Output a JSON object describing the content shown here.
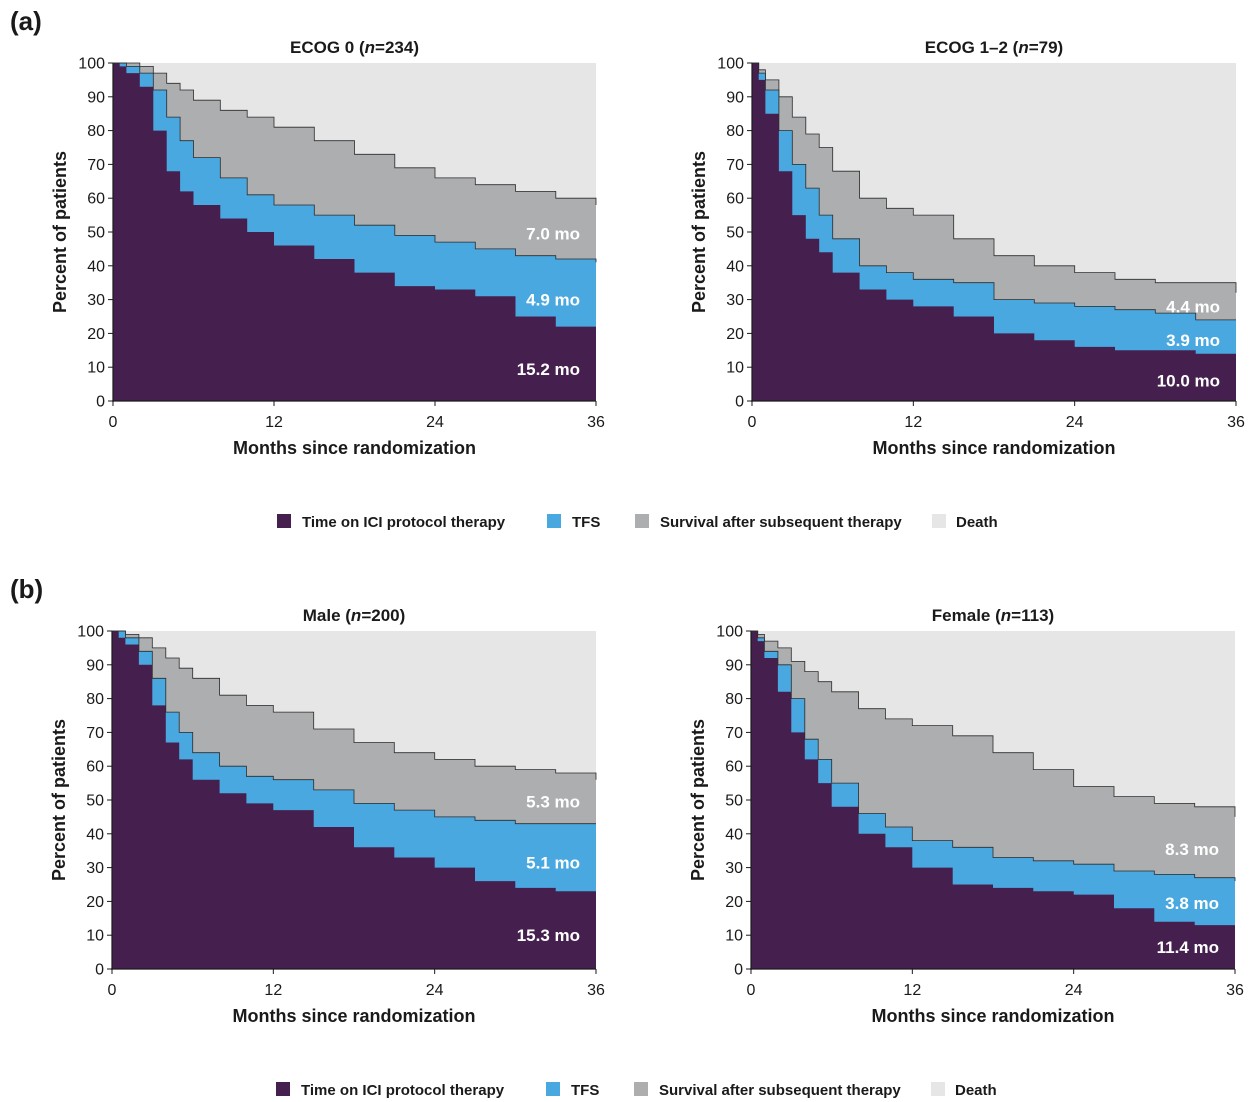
{
  "panels": [
    {
      "letter": "(a)"
    },
    {
      "letter": "(b)"
    }
  ],
  "legend": [
    {
      "label": "Time on ICI protocol therapy",
      "color": "#45204f"
    },
    {
      "label": "TFS",
      "color": "#4aa8e0"
    },
    {
      "label": "Survival after subsequent therapy",
      "color": "#adaeb0"
    },
    {
      "label": "Death",
      "color": "#e6e6e6"
    }
  ],
  "chart_data": [
    {
      "type": "area",
      "panel": "(a)",
      "title": "ECOG 0 (n=234)",
      "title_prefix": "ECOG 0 (",
      "title_n": "n",
      "title_suffix": "=234)",
      "xlabel": "Months since randomization",
      "ylabel": "Percent of patients",
      "xticks": [
        0,
        12,
        24,
        36
      ],
      "yticks": [
        0,
        10,
        20,
        30,
        40,
        50,
        60,
        70,
        80,
        90,
        100
      ],
      "xlim": [
        0,
        36
      ],
      "ylim": [
        0,
        100
      ],
      "x": [
        0,
        0.5,
        1,
        2,
        3,
        4,
        5,
        6,
        8,
        10,
        12,
        15,
        18,
        21,
        24,
        27,
        30,
        33,
        36
      ],
      "series": [
        {
          "key": "ici",
          "values": [
            100,
            99,
            97,
            93,
            80,
            68,
            62,
            58,
            54,
            50,
            46,
            42,
            38,
            34,
            33,
            31,
            25,
            22,
            19
          ]
        },
        {
          "key": "tfs",
          "values": [
            100,
            100,
            99,
            97,
            92,
            84,
            77,
            72,
            66,
            61,
            58,
            55,
            52,
            49,
            47,
            45,
            43,
            42,
            41
          ]
        },
        {
          "key": "os",
          "values": [
            100,
            100,
            100,
            99,
            97,
            94,
            92,
            89,
            86,
            84,
            81,
            77,
            73,
            69,
            66,
            64,
            62,
            60,
            58
          ]
        }
      ],
      "annotations": [
        {
          "text": "7.0 mo",
          "region": "survival-after-subsequent-therapy"
        },
        {
          "text": "4.9 mo",
          "region": "TFS"
        },
        {
          "text": "15.2 mo",
          "region": "time-on-ICI-protocol-therapy"
        }
      ]
    },
    {
      "type": "area",
      "panel": "(a)",
      "title": "ECOG 1–2 (n=79)",
      "title_prefix": "ECOG 1–2 (",
      "title_n": "n",
      "title_suffix": "=79)",
      "xlabel": "Months since randomization",
      "ylabel": "Percent of patients",
      "xticks": [
        0,
        12,
        24,
        36
      ],
      "yticks": [
        0,
        10,
        20,
        30,
        40,
        50,
        60,
        70,
        80,
        90,
        100
      ],
      "xlim": [
        0,
        36
      ],
      "ylim": [
        0,
        100
      ],
      "x": [
        0,
        0.5,
        1,
        2,
        3,
        4,
        5,
        6,
        8,
        10,
        12,
        15,
        18,
        21,
        24,
        27,
        30,
        33,
        36
      ],
      "series": [
        {
          "key": "ici",
          "values": [
            100,
            95,
            85,
            68,
            55,
            48,
            44,
            38,
            33,
            30,
            28,
            25,
            20,
            18,
            16,
            15,
            15,
            14,
            12
          ]
        },
        {
          "key": "tfs",
          "values": [
            100,
            97,
            92,
            80,
            70,
            63,
            55,
            48,
            40,
            38,
            36,
            35,
            30,
            29,
            28,
            27,
            26,
            24,
            24
          ]
        },
        {
          "key": "os",
          "values": [
            100,
            98,
            95,
            90,
            84,
            79,
            75,
            68,
            60,
            57,
            55,
            48,
            43,
            40,
            38,
            36,
            35,
            35,
            32
          ]
        }
      ],
      "annotations": [
        {
          "text": "4.4 mo",
          "region": "survival-after-subsequent-therapy"
        },
        {
          "text": "3.9 mo",
          "region": "TFS"
        },
        {
          "text": "10.0 mo",
          "region": "time-on-ICI-protocol-therapy"
        }
      ]
    },
    {
      "type": "area",
      "panel": "(b)",
      "title": "Male (n=200)",
      "title_prefix": "Male (",
      "title_n": "n",
      "title_suffix": "=200)",
      "xlabel": "Months since randomization",
      "ylabel": "Percent of patients",
      "xticks": [
        0,
        12,
        24,
        36
      ],
      "yticks": [
        0,
        10,
        20,
        30,
        40,
        50,
        60,
        70,
        80,
        90,
        100
      ],
      "xlim": [
        0,
        36
      ],
      "ylim": [
        0,
        100
      ],
      "x": [
        0,
        0.5,
        1,
        2,
        3,
        4,
        5,
        6,
        8,
        10,
        12,
        15,
        18,
        21,
        24,
        27,
        30,
        33,
        36
      ],
      "series": [
        {
          "key": "ici",
          "values": [
            100,
            98,
            96,
            90,
            78,
            67,
            62,
            56,
            52,
            49,
            47,
            42,
            36,
            33,
            30,
            26,
            24,
            23,
            20
          ]
        },
        {
          "key": "tfs",
          "values": [
            100,
            100,
            98,
            94,
            86,
            76,
            70,
            64,
            60,
            57,
            56,
            53,
            49,
            47,
            45,
            44,
            43,
            43,
            43
          ]
        },
        {
          "key": "os",
          "values": [
            100,
            100,
            99,
            98,
            95,
            92,
            89,
            86,
            81,
            78,
            76,
            71,
            67,
            64,
            62,
            60,
            59,
            58,
            56
          ]
        }
      ],
      "annotations": [
        {
          "text": "5.3 mo",
          "region": "survival-after-subsequent-therapy"
        },
        {
          "text": "5.1 mo",
          "region": "TFS"
        },
        {
          "text": "15.3 mo",
          "region": "time-on-ICI-protocol-therapy"
        }
      ]
    },
    {
      "type": "area",
      "panel": "(b)",
      "title": "Female (n=113)",
      "title_prefix": "Female (",
      "title_n": "n",
      "title_suffix": "=113)",
      "xlabel": "Months since randomization",
      "ylabel": "Percent of patients",
      "xticks": [
        0,
        12,
        24,
        36
      ],
      "yticks": [
        0,
        10,
        20,
        30,
        40,
        50,
        60,
        70,
        80,
        90,
        100
      ],
      "xlim": [
        0,
        36
      ],
      "ylim": [
        0,
        100
      ],
      "x": [
        0,
        0.5,
        1,
        2,
        3,
        4,
        5,
        6,
        8,
        10,
        12,
        15,
        18,
        21,
        24,
        27,
        30,
        33,
        36
      ],
      "series": [
        {
          "key": "ici",
          "values": [
            100,
            97,
            92,
            82,
            70,
            62,
            55,
            48,
            40,
            36,
            30,
            25,
            24,
            23,
            22,
            18,
            14,
            13,
            13
          ]
        },
        {
          "key": "tfs",
          "values": [
            100,
            98,
            94,
            90,
            80,
            68,
            62,
            55,
            46,
            42,
            38,
            36,
            33,
            32,
            31,
            29,
            28,
            27,
            26
          ]
        },
        {
          "key": "os",
          "values": [
            100,
            99,
            97,
            95,
            91,
            88,
            85,
            82,
            77,
            74,
            72,
            69,
            64,
            59,
            54,
            51,
            49,
            48,
            45
          ]
        }
      ],
      "annotations": [
        {
          "text": "8.3 mo",
          "region": "survival-after-subsequent-therapy"
        },
        {
          "text": "3.8 mo",
          "region": "TFS"
        },
        {
          "text": "11.4 mo",
          "region": "time-on-ICI-protocol-therapy"
        }
      ]
    }
  ]
}
